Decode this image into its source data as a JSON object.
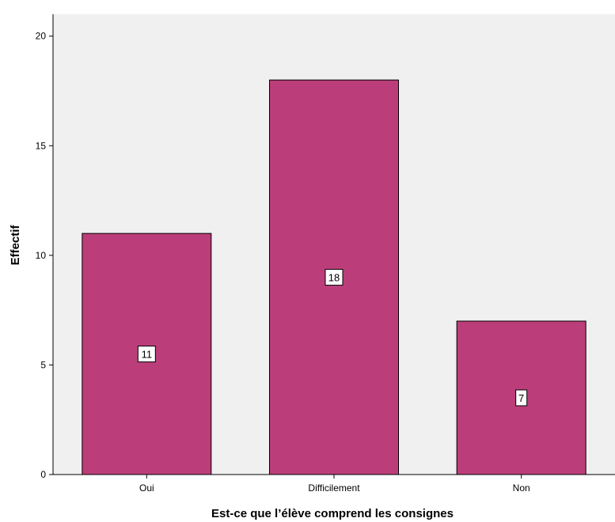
{
  "colors": {
    "plot_background": "#f0f0f0",
    "bar_fill": "#bb3e7a",
    "bar_stroke": "#000000",
    "axis": "#000000",
    "label_box": "#ffffff"
  },
  "chart_data": {
    "type": "bar",
    "title": "",
    "xlabel": "Est-ce que l’élève comprend les consignes",
    "ylabel": "Effectif",
    "categories": [
      "Oui",
      "Difficilement",
      "Non"
    ],
    "values": [
      11,
      18,
      7
    ],
    "data_labels": [
      "11",
      "18",
      "7"
    ],
    "ylim": [
      0,
      21
    ],
    "yticks": [
      0,
      5,
      10,
      15,
      20
    ],
    "ytick_labels": [
      "0",
      "5",
      "10",
      "15",
      "20"
    ],
    "grid": false,
    "legend": "none"
  }
}
